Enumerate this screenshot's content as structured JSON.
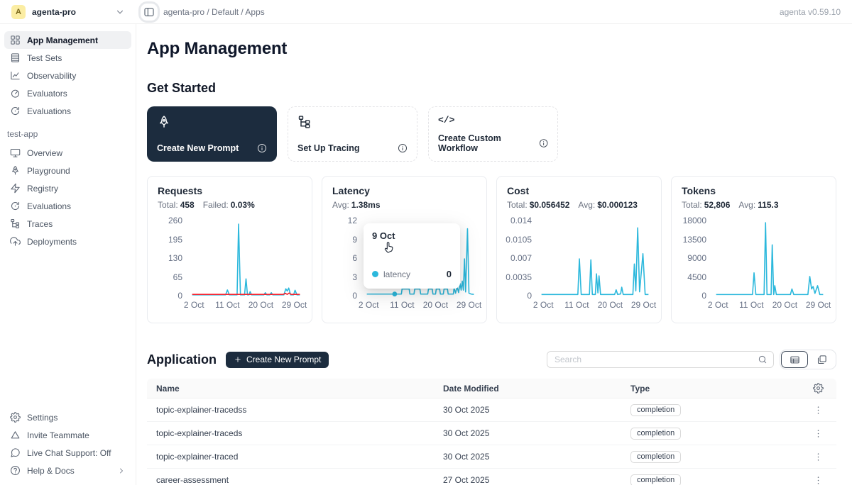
{
  "topbar": {
    "avatar_letter": "A",
    "workspace": "agenta-pro",
    "breadcrumb": "agenta-pro / Default / Apps",
    "version": "agenta v0.59.10"
  },
  "sidebar": {
    "main_items": [
      {
        "label": "App Management",
        "icon": "grid",
        "selected": true
      },
      {
        "label": "Test Sets",
        "icon": "table",
        "selected": false
      },
      {
        "label": "Observability",
        "icon": "chart",
        "selected": false
      },
      {
        "label": "Evaluators",
        "icon": "gauge",
        "selected": false
      },
      {
        "label": "Evaluations",
        "icon": "refresh",
        "selected": false
      }
    ],
    "section_label": "test-app",
    "app_items": [
      {
        "label": "Overview",
        "icon": "monitor"
      },
      {
        "label": "Playground",
        "icon": "rocket"
      },
      {
        "label": "Registry",
        "icon": "zap"
      },
      {
        "label": "Evaluations",
        "icon": "refresh"
      },
      {
        "label": "Traces",
        "icon": "tree"
      },
      {
        "label": "Deployments",
        "icon": "cloud"
      }
    ],
    "footer_items": [
      {
        "label": "Settings",
        "icon": "gear",
        "chevron": false
      },
      {
        "label": "Invite Teammate",
        "icon": "triangle",
        "chevron": false
      },
      {
        "label": "Live Chat Support: Off",
        "icon": "chat",
        "chevron": false
      },
      {
        "label": "Help & Docs",
        "icon": "help",
        "chevron": true
      }
    ]
  },
  "page": {
    "title": "App Management"
  },
  "get_started": {
    "title": "Get Started",
    "cards": [
      {
        "label": "Create New Prompt",
        "icon": "rocket",
        "dark": true
      },
      {
        "label": "Set Up Tracing",
        "icon": "tree",
        "dark": false
      },
      {
        "label": "Create Custom Workflow",
        "icon": "code",
        "dark": false
      }
    ]
  },
  "colors": {
    "accent": "#2cb8dc",
    "danger": "#f5222d",
    "navy": "#1c2c3e"
  },
  "chart_data": [
    {
      "type": "line",
      "title": "Requests",
      "stats": [
        {
          "label": "Total:",
          "value": "458"
        },
        {
          "label": "Failed:",
          "value": "0.03%"
        }
      ],
      "y_ticks": [
        "260",
        "195",
        "130",
        "65",
        "0"
      ],
      "y_max": 260,
      "x_domain": [
        1,
        31
      ],
      "x_ticks": [
        {
          "label": "2 Oct",
          "day": 2
        },
        {
          "label": "11 Oct",
          "day": 11
        },
        {
          "label": "20 Oct",
          "day": 20
        },
        {
          "label": "29 Oct",
          "day": 29
        }
      ],
      "series": [
        {
          "name": "requests",
          "color": "#2cb8dc",
          "points": [
            [
              1.5,
              0.5
            ],
            [
              10.5,
              0.5
            ],
            [
              11,
              18
            ],
            [
              11.5,
              0.5
            ],
            [
              13.6,
              0.5
            ],
            [
              14,
              255
            ],
            [
              14.5,
              0.5
            ],
            [
              15.6,
              0.5
            ],
            [
              16,
              58
            ],
            [
              16.4,
              0.5
            ],
            [
              16.8,
              0.5
            ],
            [
              17.1,
              12
            ],
            [
              17.5,
              0.5
            ],
            [
              20.8,
              0.5
            ],
            [
              21.2,
              8
            ],
            [
              21.6,
              0.5
            ],
            [
              22.4,
              0.5
            ],
            [
              22.8,
              8
            ],
            [
              23.2,
              0.5
            ],
            [
              26.2,
              0.5
            ],
            [
              26.7,
              22
            ],
            [
              27.1,
              14
            ],
            [
              27.5,
              25
            ],
            [
              28,
              0.5
            ],
            [
              28.8,
              0.5
            ],
            [
              29.2,
              17
            ],
            [
              29.7,
              0.5
            ],
            [
              30.5,
              0.5
            ]
          ]
        },
        {
          "name": "failed",
          "color": "#f5222d",
          "points": [
            [
              1.5,
              2
            ],
            [
              26,
              2
            ],
            [
              26.6,
              6
            ],
            [
              27.1,
              2
            ],
            [
              27.6,
              7
            ],
            [
              28.1,
              2
            ],
            [
              30.5,
              2
            ]
          ]
        }
      ]
    },
    {
      "type": "line",
      "title": "Latency",
      "stats": [
        {
          "label": "Avg:",
          "value": "1.38ms"
        }
      ],
      "y_ticks": [
        "12",
        "9",
        "6",
        "3",
        "0"
      ],
      "y_max": 12,
      "x_domain": [
        1,
        31
      ],
      "x_ticks": [
        {
          "label": "2 Oct",
          "day": 2
        },
        {
          "label": "11 Oct",
          "day": 11
        },
        {
          "label": "20 Oct",
          "day": 20
        },
        {
          "label": "29 Oct",
          "day": 29
        }
      ],
      "series": [
        {
          "name": "latency",
          "color": "#2cb8dc",
          "points": [
            [
              1.5,
              0.15
            ],
            [
              10.8,
              0.15
            ],
            [
              11,
              1
            ],
            [
              12.9,
              1
            ],
            [
              13.1,
              0.15
            ],
            [
              14.2,
              0.15
            ],
            [
              14.4,
              1
            ],
            [
              15.8,
              1
            ],
            [
              16,
              0.15
            ],
            [
              17.9,
              0.15
            ],
            [
              18.1,
              1
            ],
            [
              19.1,
              1
            ],
            [
              19.3,
              0.15
            ],
            [
              20,
              0.15
            ],
            [
              20.2,
              1
            ],
            [
              21.1,
              1
            ],
            [
              21.3,
              0.15
            ],
            [
              22.1,
              0.15
            ],
            [
              22.3,
              1
            ],
            [
              23.2,
              1
            ],
            [
              23.4,
              0.15
            ],
            [
              24.8,
              0.15
            ],
            [
              25,
              1.2
            ],
            [
              25.4,
              0.3
            ],
            [
              25.8,
              1.4
            ],
            [
              26.2,
              0.4
            ],
            [
              26.6,
              1.9
            ],
            [
              26.9,
              0.8
            ],
            [
              27.2,
              2.3
            ],
            [
              27.5,
              0.8
            ],
            [
              27.8,
              6
            ],
            [
              28.1,
              0.5
            ],
            [
              28.6,
              11
            ],
            [
              29,
              0.3
            ],
            [
              29.6,
              0.15
            ],
            [
              30.3,
              0.1
            ]
          ]
        }
      ],
      "tooltip": {
        "date": "9 Oct",
        "series_name": "latency",
        "value": "0",
        "dot_color": "#2cb8dc",
        "dot": [
          9,
          0.15
        ]
      }
    },
    {
      "type": "line",
      "title": "Cost",
      "stats": [
        {
          "label": "Total:",
          "value": "$0.056452"
        },
        {
          "label": "Avg:",
          "value": "$0.000123"
        }
      ],
      "y_ticks": [
        "0.014",
        "0.0105",
        "0.007",
        "0.0035",
        "0"
      ],
      "y_max": 0.014,
      "x_domain": [
        1,
        31
      ],
      "x_ticks": [
        {
          "label": "2 Oct",
          "day": 2
        },
        {
          "label": "11 Oct",
          "day": 11
        },
        {
          "label": "20 Oct",
          "day": 20
        },
        {
          "label": "29 Oct",
          "day": 29
        }
      ],
      "series": [
        {
          "name": "cost",
          "color": "#2cb8dc",
          "points": [
            [
              1.5,
              0.0001
            ],
            [
              11.3,
              0.0001
            ],
            [
              11.7,
              0.007
            ],
            [
              12.2,
              0.0001
            ],
            [
              14.4,
              0.0001
            ],
            [
              14.8,
              0.0068
            ],
            [
              15.2,
              0.0001
            ],
            [
              16,
              0.0001
            ],
            [
              16.3,
              0.0041
            ],
            [
              16.7,
              0.0004
            ],
            [
              17,
              0.0037
            ],
            [
              17.4,
              0.0001
            ],
            [
              21.2,
              0.0001
            ],
            [
              21.6,
              0.001
            ],
            [
              22,
              0.0001
            ],
            [
              22.8,
              0.0002
            ],
            [
              23.1,
              0.0015
            ],
            [
              23.5,
              0.0001
            ],
            [
              26.1,
              0.0001
            ],
            [
              26.5,
              0.006
            ],
            [
              26.9,
              0.0008
            ],
            [
              27.4,
              0.013
            ],
            [
              27.9,
              0.0006
            ],
            [
              28.8,
              0.008
            ],
            [
              29.4,
              0.0001
            ],
            [
              30.3,
              0.0001
            ]
          ]
        }
      ]
    },
    {
      "type": "line",
      "title": "Tokens",
      "stats": [
        {
          "label": "Total:",
          "value": "52,806"
        },
        {
          "label": "Avg:",
          "value": "115.3"
        }
      ],
      "y_ticks": [
        "18000",
        "13500",
        "9000",
        "4500",
        "0"
      ],
      "y_max": 18000,
      "x_domain": [
        1,
        31
      ],
      "x_ticks": [
        {
          "label": "2 Oct",
          "day": 2
        },
        {
          "label": "11 Oct",
          "day": 11
        },
        {
          "label": "20 Oct",
          "day": 20
        },
        {
          "label": "29 Oct",
          "day": 29
        }
      ],
      "series": [
        {
          "name": "tokens",
          "color": "#2cb8dc",
          "points": [
            [
              1.5,
              100
            ],
            [
              11.3,
              100
            ],
            [
              11.7,
              5500
            ],
            [
              12.2,
              100
            ],
            [
              14.4,
              100
            ],
            [
              14.8,
              18000
            ],
            [
              15.2,
              100
            ],
            [
              16.3,
              100
            ],
            [
              16.6,
              12500
            ],
            [
              17,
              100
            ],
            [
              17.3,
              2300
            ],
            [
              17.7,
              100
            ],
            [
              21.5,
              100
            ],
            [
              21.9,
              1500
            ],
            [
              22.4,
              100
            ],
            [
              26.2,
              100
            ],
            [
              26.7,
              4600
            ],
            [
              27.2,
              1500
            ],
            [
              27.6,
              2100
            ],
            [
              28.1,
              400
            ],
            [
              28.8,
              2300
            ],
            [
              29.4,
              100
            ],
            [
              30.3,
              100
            ]
          ]
        }
      ]
    }
  ],
  "application": {
    "title": "Application",
    "create_button": "Create New Prompt",
    "search_placeholder": "Search",
    "table": {
      "columns": [
        "Name",
        "Date Modified",
        "Type"
      ],
      "rows": [
        {
          "name": "topic-explainer-tracedss",
          "date": "30 Oct 2025",
          "type": "completion"
        },
        {
          "name": "topic-explainer-traceds",
          "date": "30 Oct 2025",
          "type": "completion"
        },
        {
          "name": "topic-explainer-traced",
          "date": "30 Oct 2025",
          "type": "completion"
        },
        {
          "name": "career-assessment",
          "date": "27 Oct 2025",
          "type": "completion"
        }
      ]
    }
  }
}
